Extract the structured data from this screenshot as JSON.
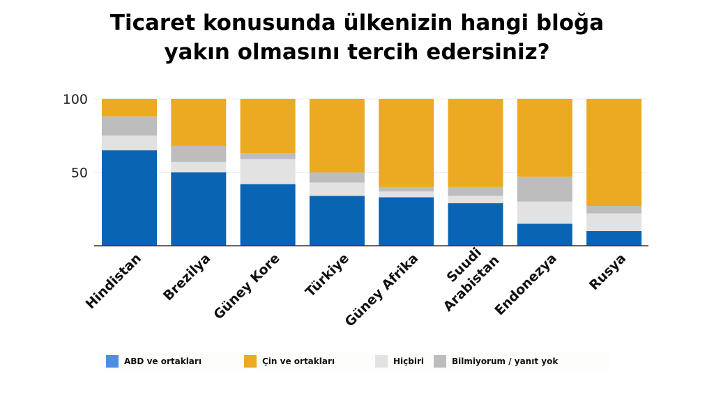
{
  "chart_data": {
    "type": "bar",
    "stacked": true,
    "title": "Ticaret konusunda ülkenizin hangi bloğa yakın olmasını tercih edersiniz?",
    "title_lines": [
      "Ticaret konusunda ülkenizin hangi bloğa",
      "yakın olmasını tercih edersiniz?"
    ],
    "categories": [
      "Hindistan",
      "Brezilya",
      "Güney Kore",
      "Türkiye",
      "Güney Afrika",
      "Suudi Arabistan",
      "Endonezya",
      "Rusya"
    ],
    "category_lines": [
      [
        "Hindistan"
      ],
      [
        "Brezilya"
      ],
      [
        "Güney Kore"
      ],
      [
        "Türkiye"
      ],
      [
        "Güney Afrika"
      ],
      [
        "Suudi",
        "Arabistan"
      ],
      [
        "Endonezya"
      ],
      [
        "Rusya"
      ]
    ],
    "series": [
      {
        "name": "ABD ve ortakları",
        "color": "#0a64b4",
        "values": [
          65,
          50,
          42,
          34,
          33,
          29,
          15,
          10
        ]
      },
      {
        "name": "Hiçbiri",
        "color": "#e2e2e2",
        "values": [
          10,
          7,
          17,
          9,
          4,
          5,
          15,
          12
        ]
      },
      {
        "name": "Bilmiyorum / yanıt yok",
        "color": "#bdbdbd",
        "values": [
          13,
          11,
          4,
          7,
          3,
          6,
          17,
          5
        ]
      },
      {
        "name": "Çin ve ortakları",
        "color": "#ecaa22",
        "values": [
          12,
          32,
          37,
          50,
          60,
          60,
          53,
          73
        ]
      }
    ],
    "legend": [
      {
        "name": "ABD ve ortakları",
        "color": "#4a90e2"
      },
      {
        "name": "Çin ve ortakları",
        "color": "#ecaa22"
      },
      {
        "name": "Hiçbiri",
        "color": "#e2e2e2"
      },
      {
        "name": "Bilmiyorum / yanıt yok",
        "color": "#bdbdbd"
      }
    ],
    "yticks": [
      "50",
      "100"
    ],
    "ylim": [
      0,
      100
    ],
    "xlabel": "",
    "ylabel": "",
    "grid": true,
    "legend_position": "bottom"
  }
}
